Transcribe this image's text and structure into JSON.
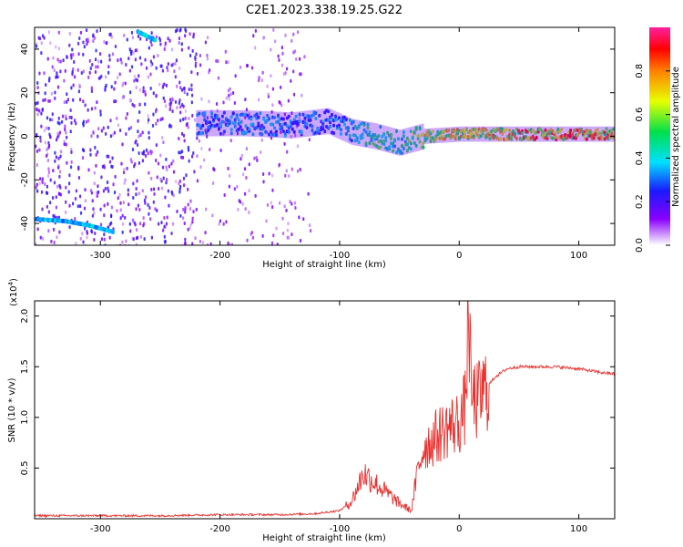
{
  "title": "C2E1.2023.338.19.25.G22",
  "colors": {
    "snr_line": "#e8312e",
    "track_low": "#5a00d6",
    "track_mid": "#18d8c8",
    "track_high": "#ff2a2a"
  },
  "chart_data": [
    {
      "type": "heatmap",
      "xlabel": "Height of straight line (km)",
      "ylabel": "Frequency (Hz)",
      "xlim": [
        -355,
        130
      ],
      "ylim": [
        -50,
        50
      ],
      "x_ticks": [
        "-300",
        "-200",
        "-100",
        "0",
        "100"
      ],
      "y_ticks": [
        "-40",
        "-20",
        "0",
        "20",
        "40"
      ],
      "colorbar": {
        "label": "Normalized spectral amplitude",
        "range": [
          0,
          1
        ],
        "ticks": [
          "0.0",
          "0.2",
          "0.4",
          "0.6",
          "0.8"
        ]
      },
      "track": [
        {
          "x": -220,
          "y": 6,
          "amp": 0.35
        },
        {
          "x": -180,
          "y": 6,
          "amp": 0.4
        },
        {
          "x": -140,
          "y": 5,
          "amp": 0.35
        },
        {
          "x": -110,
          "y": 7,
          "amp": 0.35
        },
        {
          "x": -90,
          "y": 2,
          "amp": 0.45
        },
        {
          "x": -70,
          "y": 0,
          "amp": 0.55
        },
        {
          "x": -50,
          "y": -3,
          "amp": 0.5
        },
        {
          "x": -30,
          "y": 0,
          "amp": 0.7
        },
        {
          "x": 0,
          "y": 1,
          "amp": 0.75
        },
        {
          "x": 40,
          "y": 1,
          "amp": 0.8
        },
        {
          "x": 80,
          "y": 1,
          "amp": 0.85
        },
        {
          "x": 130,
          "y": 1,
          "amp": 0.8
        }
      ],
      "secondary_tracks": [
        [
          {
            "x": -355,
            "y": -38
          },
          {
            "x": -330,
            "y": -39
          },
          {
            "x": -310,
            "y": -41
          },
          {
            "x": -290,
            "y": -44
          }
        ],
        [
          {
            "x": -270,
            "y": 48
          },
          {
            "x": -255,
            "y": 44
          }
        ]
      ]
    },
    {
      "type": "line",
      "xlabel": "Height of straight line (km)",
      "ylabel": "SNR (10 * v/v)",
      "y_multiplier": "(x10",
      "y_multiplier_exp": "4",
      "xlim": [
        -355,
        130
      ],
      "ylim": [
        0,
        2.15
      ],
      "x_ticks": [
        "-300",
        "-200",
        "-100",
        "0",
        "100"
      ],
      "y_ticks": [
        "0.5",
        "1.0",
        "1.5",
        "2.0"
      ],
      "series": [
        {
          "x": [
            -355,
            -300,
            -250,
            -200,
            -150,
            -120,
            -100,
            -90,
            -80,
            -70,
            -60,
            -50,
            -40,
            -35,
            -30,
            -20,
            -10,
            0,
            5,
            8,
            10,
            15,
            20,
            30,
            40,
            50,
            60,
            80,
            100,
            110,
            120,
            130
          ],
          "values": [
            0.03,
            0.03,
            0.03,
            0.04,
            0.04,
            0.05,
            0.08,
            0.17,
            0.45,
            0.35,
            0.25,
            0.15,
            0.08,
            0.45,
            0.7,
            0.8,
            0.9,
            0.95,
            1.1,
            2.1,
            1.2,
            1.15,
            1.25,
            1.4,
            1.48,
            1.5,
            1.5,
            1.5,
            1.48,
            1.46,
            1.44,
            1.43
          ]
        }
      ]
    }
  ]
}
